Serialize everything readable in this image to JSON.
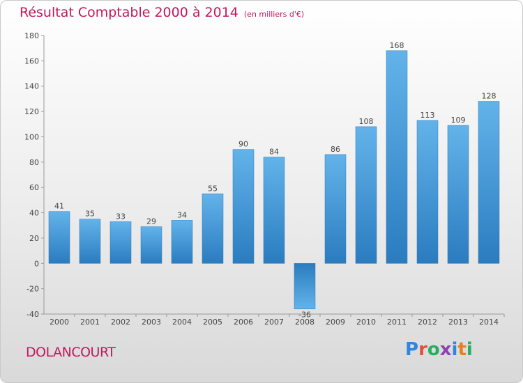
{
  "header": {
    "title": "Résultat Comptable 2000 à 2014",
    "subtitle": "(en milliers d'€)"
  },
  "footer": {
    "commune": "DOLANCOURT",
    "logo_text": "Proxiti",
    "logo_letters": [
      "P",
      "r",
      "o",
      "x",
      "i",
      "t",
      "i"
    ],
    "logo_colors": [
      "#2e86de",
      "#e74c3c",
      "#27ae60",
      "#8e44ad",
      "#2e86de",
      "#e67e22",
      "#27ae60"
    ]
  },
  "colors": {
    "accent": "#c2185b",
    "bar_light": "#63b3ea",
    "bar_dark": "#2a7cbf"
  },
  "chart_data": {
    "type": "bar",
    "title": "Résultat Comptable 2000 à 2014",
    "xlabel": "",
    "ylabel": "",
    "categories": [
      "2000",
      "2001",
      "2002",
      "2003",
      "2004",
      "2005",
      "2006",
      "2007",
      "2008",
      "2009",
      "2010",
      "2011",
      "2012",
      "2013",
      "2014"
    ],
    "values": [
      41,
      35,
      33,
      29,
      34,
      55,
      90,
      84,
      -36,
      86,
      108,
      168,
      113,
      109,
      128
    ],
    "ylim": [
      -40,
      180
    ],
    "yticks": [
      -40,
      -20,
      0,
      20,
      40,
      60,
      80,
      100,
      120,
      140,
      160,
      180
    ],
    "grid": false,
    "legend": "none"
  }
}
